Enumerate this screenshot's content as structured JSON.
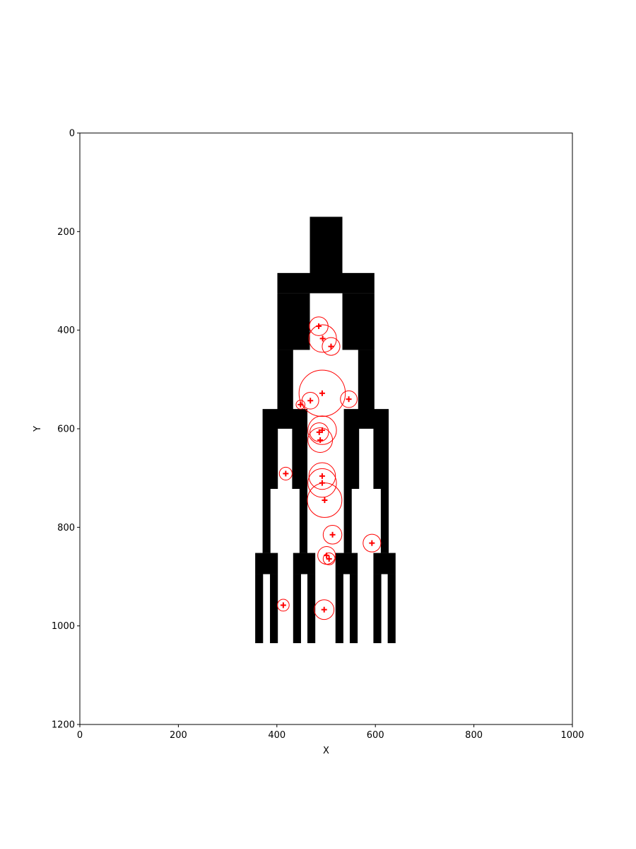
{
  "chart_data": {
    "type": "scatter",
    "title": "",
    "xlabel": "X",
    "ylabel": "Y",
    "xlim": [
      0,
      1000
    ],
    "ylim": [
      1200,
      0
    ],
    "y_axis_inverted": true,
    "grid": false,
    "x_ticks": [
      0,
      200,
      400,
      600,
      800,
      1000
    ],
    "y_ticks": [
      0,
      200,
      400,
      600,
      800,
      1000,
      1200
    ],
    "x_tick_labels": [
      "0",
      "200",
      "400",
      "600",
      "800",
      "1000"
    ],
    "y_tick_labels": [
      "0",
      "200",
      "400",
      "600",
      "800",
      "1000",
      "1200"
    ],
    "shape_color": "#000000",
    "marker_color": "#ff0000",
    "shape_rects": [
      {
        "x0": 467,
        "x1": 533,
        "y0": 170,
        "y1": 325
      },
      {
        "x0": 401,
        "x1": 598,
        "y0": 284,
        "y1": 325
      },
      {
        "x0": 401,
        "x1": 467,
        "y0": 325,
        "y1": 440
      },
      {
        "x0": 533,
        "x1": 598,
        "y0": 325,
        "y1": 440
      },
      {
        "x0": 401,
        "x1": 433,
        "y0": 440,
        "y1": 600
      },
      {
        "x0": 565,
        "x1": 598,
        "y0": 440,
        "y1": 600
      },
      {
        "x0": 371,
        "x1": 462,
        "y0": 560,
        "y1": 600
      },
      {
        "x0": 536,
        "x1": 627,
        "y0": 560,
        "y1": 600
      },
      {
        "x0": 371,
        "x1": 402,
        "y0": 600,
        "y1": 722
      },
      {
        "x0": 431,
        "x1": 462,
        "y0": 600,
        "y1": 722
      },
      {
        "x0": 536,
        "x1": 567,
        "y0": 600,
        "y1": 722
      },
      {
        "x0": 596,
        "x1": 627,
        "y0": 600,
        "y1": 722
      },
      {
        "x0": 371,
        "x1": 387,
        "y0": 722,
        "y1": 852
      },
      {
        "x0": 446,
        "x1": 462,
        "y0": 722,
        "y1": 852
      },
      {
        "x0": 536,
        "x1": 552,
        "y0": 722,
        "y1": 852
      },
      {
        "x0": 611,
        "x1": 627,
        "y0": 722,
        "y1": 852
      },
      {
        "x0": 356,
        "x1": 402,
        "y0": 852,
        "y1": 895
      },
      {
        "x0": 433,
        "x1": 478,
        "y0": 852,
        "y1": 895
      },
      {
        "x0": 519,
        "x1": 564,
        "y0": 852,
        "y1": 895
      },
      {
        "x0": 596,
        "x1": 641,
        "y0": 852,
        "y1": 895
      },
      {
        "x0": 356,
        "x1": 372,
        "y0": 895,
        "y1": 1035
      },
      {
        "x0": 386,
        "x1": 402,
        "y0": 895,
        "y1": 1035
      },
      {
        "x0": 433,
        "x1": 449,
        "y0": 895,
        "y1": 1035
      },
      {
        "x0": 462,
        "x1": 478,
        "y0": 895,
        "y1": 1035
      },
      {
        "x0": 519,
        "x1": 535,
        "y0": 895,
        "y1": 1035
      },
      {
        "x0": 548,
        "x1": 564,
        "y0": 895,
        "y1": 1035
      },
      {
        "x0": 596,
        "x1": 612,
        "y0": 895,
        "y1": 1035
      },
      {
        "x0": 625,
        "x1": 641,
        "y0": 895,
        "y1": 1035
      }
    ],
    "series": [
      {
        "marker": "plus",
        "points": [
          {
            "x": 485,
            "y": 392,
            "r": 19
          },
          {
            "x": 493,
            "y": 417,
            "r": 28
          },
          {
            "x": 510,
            "y": 433,
            "r": 18
          },
          {
            "x": 492,
            "y": 528,
            "r": 47
          },
          {
            "x": 468,
            "y": 543,
            "r": 17
          },
          {
            "x": 546,
            "y": 540,
            "r": 17
          },
          {
            "x": 448,
            "y": 551,
            "r": 9
          },
          {
            "x": 492,
            "y": 603,
            "r": 29
          },
          {
            "x": 486,
            "y": 607,
            "r": 19
          },
          {
            "x": 488,
            "y": 623,
            "r": 25
          },
          {
            "x": 418,
            "y": 691,
            "r": 13
          },
          {
            "x": 492,
            "y": 696,
            "r": 27
          },
          {
            "x": 492,
            "y": 710,
            "r": 29
          },
          {
            "x": 497,
            "y": 745,
            "r": 35
          },
          {
            "x": 513,
            "y": 815,
            "r": 19
          },
          {
            "x": 593,
            "y": 832,
            "r": 18
          },
          {
            "x": 501,
            "y": 857,
            "r": 18
          },
          {
            "x": 506,
            "y": 864,
            "r": 12
          },
          {
            "x": 413,
            "y": 958,
            "r": 12
          },
          {
            "x": 496,
            "y": 967,
            "r": 20
          }
        ]
      }
    ]
  }
}
